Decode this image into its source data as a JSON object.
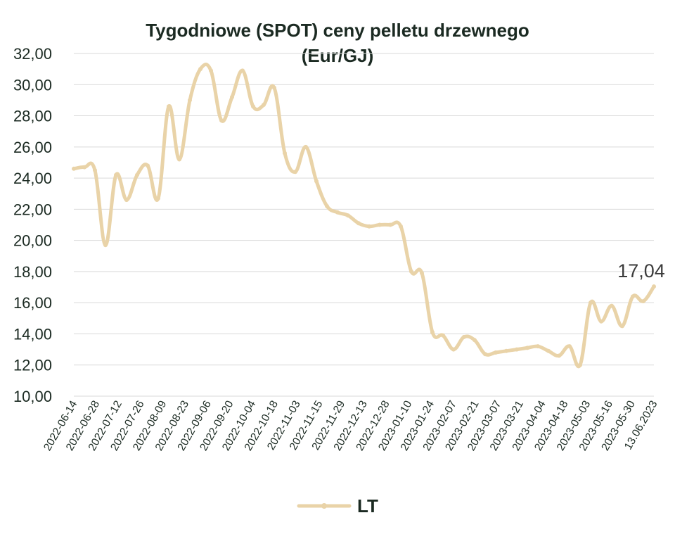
{
  "chart_data": {
    "type": "line",
    "title_lines": [
      "Tygodniowe (SPOT) ceny pelletu drzewnego",
      "(Eur/GJ)"
    ],
    "xlabel": "",
    "ylabel": "",
    "ylim": [
      10,
      32
    ],
    "yticks": [
      "10,00",
      "12,00",
      "14,00",
      "16,00",
      "18,00",
      "20,00",
      "22,00",
      "24,00",
      "26,00",
      "28,00",
      "30,00",
      "32,00"
    ],
    "x_tick_labels": [
      "2022-06-14",
      "2022-06-28",
      "2022-07-12",
      "2022-07-26",
      "2022-08-09",
      "2022-08-23",
      "2022-09-06",
      "2022-09-20",
      "2022-10-04",
      "2022-10-18",
      "2022-11-03",
      "2022-11-15",
      "2022-11-29",
      "2022-12-13",
      "2022-12-28",
      "2023-01-10",
      "2023-01-24",
      "2023-02-07",
      "2023-02-21",
      "2023-03-07",
      "2023-03-21",
      "2023-04-04",
      "2023-04-18",
      "2023-05-03",
      "2023-05-16",
      "2023-05-30",
      "13.06.2023"
    ],
    "grid": true,
    "legend_position": "bottom",
    "series": [
      {
        "name": "LT",
        "color": "#e9d3a8",
        "values": [
          24.6,
          24.7,
          24.5,
          19.7,
          24.2,
          22.6,
          24.2,
          24.8,
          22.7,
          28.6,
          25.2,
          29.0,
          31.0,
          30.9,
          27.7,
          29.2,
          30.9,
          28.6,
          28.7,
          29.8,
          25.6,
          24.4,
          26.0,
          23.8,
          22.2,
          21.8,
          21.6,
          21.1,
          20.9,
          21.0,
          21.0,
          20.9,
          18.0,
          17.9,
          14.1,
          13.9,
          13.0,
          13.8,
          13.6,
          12.7,
          12.8,
          12.9,
          13.0,
          13.1,
          13.2,
          12.9,
          12.6,
          13.2,
          12.0,
          16.0,
          14.8,
          15.8,
          14.5,
          16.4,
          16.1,
          17.04
        ]
      }
    ],
    "last_value_label": "17,04"
  }
}
